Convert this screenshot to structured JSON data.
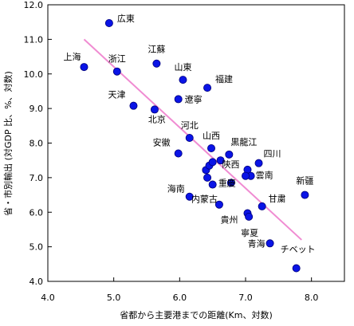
{
  "chart_data": {
    "type": "scatter",
    "title": "",
    "xlabel": "省都から主要港までの距離(Km、対数)",
    "ylabel": "省・市別輸出 (対GDP 比、%、対数)",
    "xlim": [
      4.0,
      8.5
    ],
    "ylim": [
      4.0,
      12.0
    ],
    "xticks": [
      "4.0",
      "5.0",
      "6.0",
      "7.0",
      "8.0"
    ],
    "yticks": [
      "4.0",
      "5.0",
      "6.0",
      "7.0",
      "8.0",
      "9.0",
      "10.0",
      "11.0",
      "12.0"
    ],
    "grid": false,
    "point_color": "#0a14e6",
    "trend_color": "#f08cd2",
    "trendline": {
      "x": [
        4.55,
        7.85
      ],
      "y": [
        11.0,
        5.2
      ]
    },
    "points": [
      {
        "label": "広東",
        "x": 4.93,
        "y": 11.47
      },
      {
        "label": "上海",
        "x": 4.55,
        "y": 10.2
      },
      {
        "label": "浙江",
        "x": 5.05,
        "y": 10.07
      },
      {
        "label": "江蘇",
        "x": 5.65,
        "y": 10.3
      },
      {
        "label": "山東",
        "x": 6.05,
        "y": 9.83
      },
      {
        "label": "福建",
        "x": 6.42,
        "y": 9.6
      },
      {
        "label": "天津",
        "x": 5.3,
        "y": 9.08
      },
      {
        "label": "遼寧",
        "x": 5.98,
        "y": 9.27
      },
      {
        "label": "北京",
        "x": 5.62,
        "y": 8.97
      },
      {
        "label": "河北",
        "x": 6.15,
        "y": 8.15
      },
      {
        "label": "安徽",
        "x": 5.98,
        "y": 7.7
      },
      {
        "label": "山西",
        "x": 6.48,
        "y": 7.85
      },
      {
        "label": "黒龍江",
        "x": 6.75,
        "y": 7.67
      },
      {
        "label": "四川",
        "x": 7.2,
        "y": 7.42
      },
      {
        "label": "陝西",
        "x": 7.03,
        "y": 7.23
      },
      {
        "label": "雲南",
        "x": 7.08,
        "y": 7.05
      },
      {
        "label": "重慶",
        "x": 6.78,
        "y": 6.85
      },
      {
        "label": "新疆",
        "x": 7.9,
        "y": 6.5
      },
      {
        "label": "海南",
        "x": 6.15,
        "y": 6.45
      },
      {
        "label": "内蒙古",
        "x": 6.6,
        "y": 6.22
      },
      {
        "label": "甘粛",
        "x": 7.25,
        "y": 6.17
      },
      {
        "label": "貴州",
        "x": 7.03,
        "y": 5.97
      },
      {
        "label": "寧夏",
        "x": 7.05,
        "y": 5.87
      },
      {
        "label": "青海",
        "x": 7.37,
        "y": 5.1
      },
      {
        "label": "チベット",
        "x": 7.77,
        "y": 4.38
      },
      {
        "label": "",
        "x": 6.4,
        "y": 7.22
      },
      {
        "label": "",
        "x": 6.45,
        "y": 7.35
      },
      {
        "label": "",
        "x": 6.5,
        "y": 7.45
      },
      {
        "label": "",
        "x": 6.62,
        "y": 7.5
      },
      {
        "label": "",
        "x": 6.42,
        "y": 7.0
      },
      {
        "label": "",
        "x": 6.5,
        "y": 6.8
      },
      {
        "label": "",
        "x": 7.0,
        "y": 7.05
      }
    ]
  }
}
